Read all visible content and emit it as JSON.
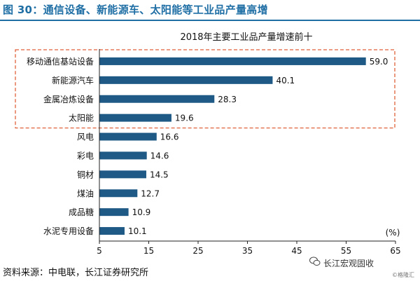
{
  "header": {
    "figure_title": "图 30：通信设备、新能源车、太阳能等工业品产量高增"
  },
  "footer": {
    "source": "资料来源：中电联，长江证券研究所",
    "watermark": "长江宏观固收",
    "watermark_small": "©格隆汇"
  },
  "colors": {
    "bar": "#1F5A86",
    "title_blue": "#1F6FA5",
    "highlight_border": "#E0623A"
  },
  "chart_data": {
    "type": "bar",
    "orientation": "horizontal",
    "title": "2018年主要工业品产量增速前十",
    "unit_label": "(%)",
    "categories": [
      "移动通信基站设备",
      "新能源汽车",
      "金属冶炼设备",
      "太阳能",
      "风电",
      "彩电",
      "铜材",
      "煤油",
      "成品糖",
      "水泥专用设备"
    ],
    "values": [
      59.0,
      40.1,
      28.3,
      19.6,
      16.6,
      14.6,
      14.5,
      12.7,
      10.9,
      10.1
    ],
    "value_labels": [
      "59.0",
      "40.1",
      "28.3",
      "19.6",
      "16.6",
      "14.6",
      "14.5",
      "12.7",
      "10.9",
      "10.1"
    ],
    "xlim": [
      5,
      65
    ],
    "xticks": [
      5,
      15,
      25,
      35,
      45,
      55,
      65
    ],
    "highlighted_categories": [
      "移动通信基站设备",
      "新能源汽车",
      "金属冶炼设备",
      "太阳能"
    ],
    "grid": false,
    "legend": "none"
  }
}
